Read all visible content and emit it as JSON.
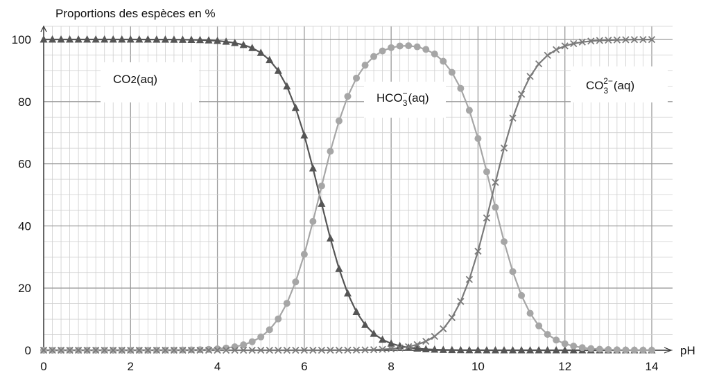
{
  "chart_data": {
    "type": "line",
    "title": "",
    "ylabel": "Proportions des espèces en %",
    "xlabel": "pH",
    "xlim": [
      0,
      14
    ],
    "ylim": [
      0,
      100
    ],
    "grid": true,
    "x_ticks": [
      0,
      2,
      4,
      6,
      8,
      10,
      12,
      14
    ],
    "x_tick_labels": [
      "0",
      "2",
      "4",
      "6",
      "8",
      "10",
      "12",
      "14"
    ],
    "y_ticks": [
      0,
      20,
      40,
      60,
      80,
      100
    ],
    "y_tick_labels": [
      "0",
      "20",
      "40",
      "60",
      "80",
      "100"
    ],
    "pKa": [
      6.35,
      10.33
    ],
    "x_step": 0.2,
    "series": [
      {
        "name": "CO2(aq)",
        "label_main": "CO",
        "label_sub": "2",
        "label_sup": "",
        "label_tail": "(aq)",
        "marker": "triangle",
        "color": "#555555"
      },
      {
        "name": "HCO3-(aq)",
        "label_main": "HCO",
        "label_sub": "3",
        "label_sup": "−",
        "label_tail": "(aq)",
        "marker": "circle",
        "color": "#a6a6a6"
      },
      {
        "name": "CO3 2-(aq)",
        "label_main": "CO",
        "label_sub": "3",
        "label_sup": "2−",
        "label_tail": "(aq)",
        "marker": "cross",
        "color": "#7a7a7a"
      }
    ]
  }
}
